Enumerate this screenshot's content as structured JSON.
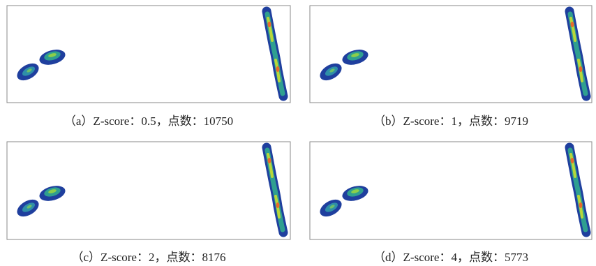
{
  "panels": [
    {
      "caption": "（a）Z-score：0.5，点数：10750"
    },
    {
      "caption": "（b）Z-score：1，点数：9719"
    },
    {
      "caption": "（c）Z-score：2，点数：8176"
    },
    {
      "caption": "（d）Z-score：4，点数：5773"
    }
  ]
}
